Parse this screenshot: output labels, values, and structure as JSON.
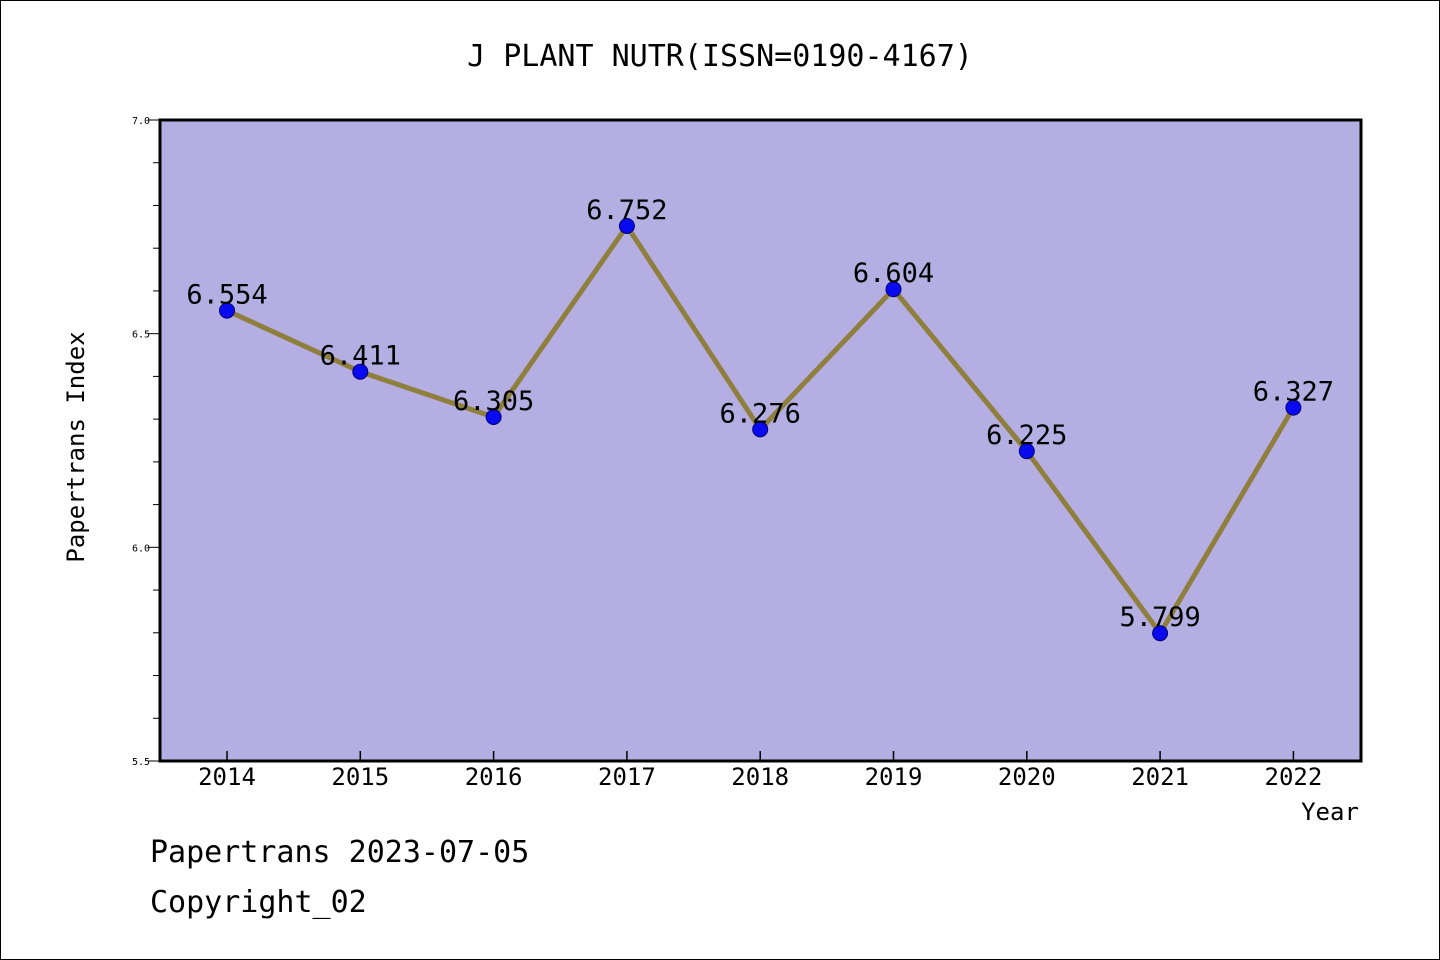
{
  "chart_data": {
    "type": "line",
    "title": "J PLANT NUTR(ISSN=0190-4167)",
    "xlabel": "Year",
    "ylabel": "Papertrans Index",
    "categories": [
      "2014",
      "2015",
      "2016",
      "2017",
      "2018",
      "2019",
      "2020",
      "2021",
      "2022"
    ],
    "values": [
      6.554,
      6.411,
      6.305,
      6.752,
      6.276,
      6.604,
      6.225,
      5.799,
      6.327
    ],
    "data_labels": [
      "6.554",
      "6.411",
      "6.305",
      "6.752",
      "6.276",
      "6.604",
      "6.225",
      "5.799",
      "6.327"
    ],
    "ylim": [
      5.5,
      7.0
    ],
    "yticks": [
      "5.5",
      "6.0",
      "6.5",
      "7.0"
    ],
    "grid": false,
    "colors": {
      "plot_background": "#b4aee2",
      "line": "#8f7f3c",
      "marker": "#0a0af0"
    }
  },
  "footer": {
    "line1": "Papertrans 2023-07-05",
    "line2": "Copyright_02"
  }
}
